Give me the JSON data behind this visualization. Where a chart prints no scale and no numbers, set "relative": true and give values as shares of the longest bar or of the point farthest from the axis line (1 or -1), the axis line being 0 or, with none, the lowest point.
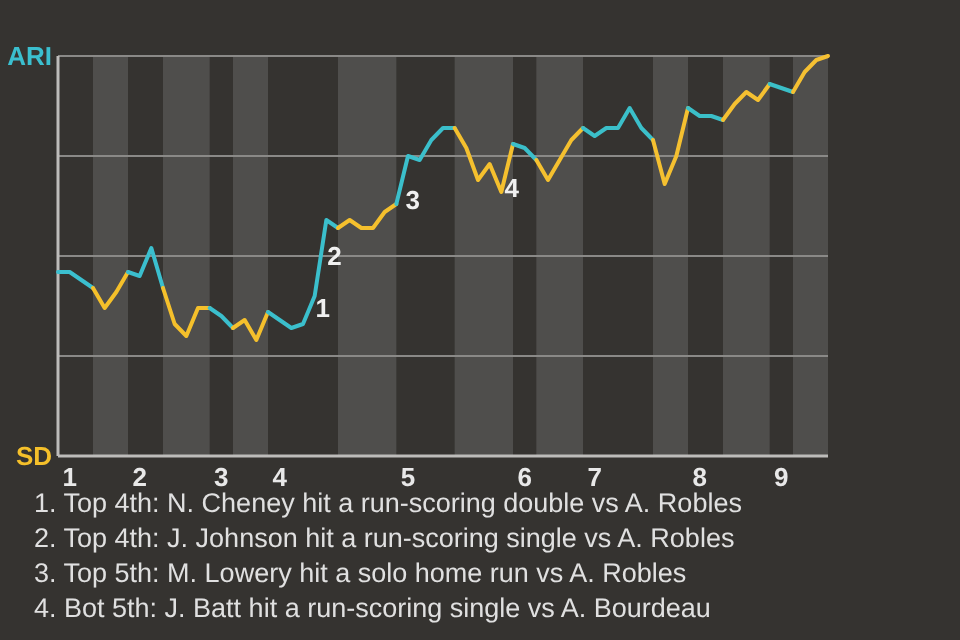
{
  "chart_data": {
    "type": "line",
    "relative": true,
    "categories": [
      null,
      "1",
      null,
      null,
      null,
      null,
      null,
      "2",
      null,
      null,
      null,
      null,
      null,
      null,
      "3",
      null,
      null,
      null,
      null,
      "4",
      null,
      null,
      null,
      null,
      null,
      null,
      null,
      null,
      null,
      null,
      "5",
      null,
      null,
      null,
      null,
      null,
      null,
      null,
      null,
      null,
      "6",
      null,
      null,
      null,
      null,
      null,
      "7",
      null,
      null,
      null,
      null,
      null,
      null,
      null,
      null,
      "8",
      null,
      null,
      null,
      null,
      null,
      null,
      "9",
      null,
      null,
      null,
      null
    ],
    "grid": "y",
    "marker": "none",
    "line_style": "solid",
    "series": [
      {
        "name": "ARI",
        "color": "#3bbfcf",
        "values": [
          0.46,
          0.46,
          0.44,
          0.42,
          null,
          null,
          null,
          null,
          null,
          null,
          null,
          null,
          null,
          null,
          null,
          null,
          null,
          null,
          null,
          null,
          null,
          null,
          null,
          null,
          null,
          null,
          null,
          null,
          null,
          null,
          null,
          null,
          null,
          null,
          null,
          null,
          null,
          null,
          null,
          null,
          null,
          null,
          null,
          null,
          null,
          null,
          null,
          null,
          null,
          null,
          null,
          null,
          null,
          null,
          null,
          null,
          null,
          null,
          null,
          null,
          null,
          null,
          null,
          null,
          null,
          null,
          null
        ]
      },
      {
        "name": "SD",
        "color": "#f5c02a",
        "values": [
          null,
          null,
          null,
          0.42,
          0.37,
          0.41,
          0.46,
          null,
          null,
          null,
          null,
          null,
          null,
          null,
          null,
          null,
          null,
          null,
          null,
          null,
          null,
          null,
          null,
          null,
          null,
          null,
          null,
          null,
          null,
          null,
          null,
          null,
          null,
          null,
          null,
          null,
          null,
          null,
          null,
          null,
          null,
          null,
          null,
          null,
          null,
          null,
          null,
          null,
          null,
          null,
          null,
          null,
          null,
          null,
          null,
          null,
          null,
          null,
          null,
          null,
          null,
          null,
          null,
          null,
          null,
          null,
          null
        ]
      },
      {
        "color": "#3bbfce",
        "values": [
          null,
          null,
          null,
          null,
          null,
          null,
          0.46,
          0.45,
          0.52,
          0.42,
          null,
          null,
          null,
          null,
          null,
          null,
          null,
          null,
          null,
          null,
          null,
          null,
          null,
          null,
          null,
          null,
          null,
          null,
          null,
          null,
          null,
          null,
          null,
          null,
          null,
          null,
          null,
          null,
          null,
          null,
          null,
          null,
          null,
          null,
          null,
          null,
          null,
          null,
          null,
          null,
          null,
          null,
          null,
          null,
          null,
          null,
          null,
          null,
          null,
          null,
          null,
          null,
          null,
          null,
          null,
          null,
          null
        ]
      },
      {
        "color": "#f5c02b",
        "values": [
          null,
          null,
          null,
          null,
          null,
          null,
          null,
          null,
          null,
          0.42,
          0.33,
          0.3,
          0.37,
          0.37,
          null,
          null,
          null,
          null,
          null,
          null,
          null,
          null,
          null,
          null,
          null,
          null,
          null,
          null,
          null,
          null,
          null,
          null,
          null,
          null,
          null,
          null,
          null,
          null,
          null,
          null,
          null,
          null,
          null,
          null,
          null,
          null,
          null,
          null,
          null,
          null,
          null,
          null,
          null,
          null,
          null,
          null,
          null,
          null,
          null,
          null,
          null,
          null,
          null,
          null,
          null,
          null,
          null
        ]
      },
      {
        "color": "#3bbfcd",
        "values": [
          null,
          null,
          null,
          null,
          null,
          null,
          null,
          null,
          null,
          null,
          null,
          null,
          null,
          0.37,
          0.35,
          0.32,
          null,
          null,
          null,
          null,
          null,
          null,
          null,
          null,
          null,
          null,
          null,
          null,
          null,
          null,
          null,
          null,
          null,
          null,
          null,
          null,
          null,
          null,
          null,
          null,
          null,
          null,
          null,
          null,
          null,
          null,
          null,
          null,
          null,
          null,
          null,
          null,
          null,
          null,
          null,
          null,
          null,
          null,
          null,
          null,
          null,
          null,
          null,
          null,
          null,
          null,
          null
        ]
      },
      {
        "color": "#f5c02c",
        "values": [
          null,
          null,
          null,
          null,
          null,
          null,
          null,
          null,
          null,
          null,
          null,
          null,
          null,
          null,
          null,
          0.32,
          0.34,
          0.29,
          0.36,
          null,
          null,
          null,
          null,
          null,
          null,
          null,
          null,
          null,
          null,
          null,
          null,
          null,
          null,
          null,
          null,
          null,
          null,
          null,
          null,
          null,
          null,
          null,
          null,
          null,
          null,
          null,
          null,
          null,
          null,
          null,
          null,
          null,
          null,
          null,
          null,
          null,
          null,
          null,
          null,
          null,
          null,
          null,
          null,
          null,
          null,
          null,
          null
        ]
      },
      {
        "color": "#3bbfcc",
        "values": [
          null,
          null,
          null,
          null,
          null,
          null,
          null,
          null,
          null,
          null,
          null,
          null,
          null,
          null,
          null,
          null,
          null,
          null,
          0.36,
          0.34,
          0.32,
          0.33,
          0.4,
          0.59,
          0.57,
          null,
          null,
          null,
          null,
          null,
          null,
          null,
          null,
          null,
          null,
          null,
          null,
          null,
          null,
          null,
          null,
          null,
          null,
          null,
          null,
          null,
          null,
          null,
          null,
          null,
          null,
          null,
          null,
          null,
          null,
          null,
          null,
          null,
          null,
          null,
          null,
          null,
          null,
          null,
          null,
          null,
          null
        ]
      },
      {
        "color": "#f5c02d",
        "values": [
          null,
          null,
          null,
          null,
          null,
          null,
          null,
          null,
          null,
          null,
          null,
          null,
          null,
          null,
          null,
          null,
          null,
          null,
          null,
          null,
          null,
          null,
          null,
          null,
          0.57,
          0.59,
          0.57,
          0.57,
          0.61,
          0.63,
          null,
          null,
          null,
          null,
          null,
          null,
          null,
          null,
          null,
          null,
          null,
          null,
          null,
          null,
          null,
          null,
          null,
          null,
          null,
          null,
          null,
          null,
          null,
          null,
          null,
          null,
          null,
          null,
          null,
          null,
          null,
          null,
          null,
          null,
          null,
          null,
          null
        ]
      },
      {
        "color": "#3bbfcb",
        "values": [
          null,
          null,
          null,
          null,
          null,
          null,
          null,
          null,
          null,
          null,
          null,
          null,
          null,
          null,
          null,
          null,
          null,
          null,
          null,
          null,
          null,
          null,
          null,
          null,
          null,
          null,
          null,
          null,
          null,
          0.63,
          0.75,
          0.74,
          0.79,
          0.82,
          0.82,
          null,
          null,
          null,
          null,
          null,
          null,
          null,
          null,
          null,
          null,
          null,
          null,
          null,
          null,
          null,
          null,
          null,
          null,
          null,
          null,
          null,
          null,
          null,
          null,
          null,
          null,
          null,
          null,
          null,
          null,
          null,
          null
        ]
      },
      {
        "color": "#f5c02e",
        "values": [
          null,
          null,
          null,
          null,
          null,
          null,
          null,
          null,
          null,
          null,
          null,
          null,
          null,
          null,
          null,
          null,
          null,
          null,
          null,
          null,
          null,
          null,
          null,
          null,
          null,
          null,
          null,
          null,
          null,
          null,
          null,
          null,
          null,
          null,
          0.82,
          0.77,
          0.69,
          0.73,
          0.66,
          0.78,
          null,
          null,
          null,
          null,
          null,
          null,
          null,
          null,
          null,
          null,
          null,
          null,
          null,
          null,
          null,
          null,
          null,
          null,
          null,
          null,
          null,
          null,
          null,
          null,
          null,
          null,
          null
        ]
      },
      {
        "color": "#3bbfca",
        "values": [
          null,
          null,
          null,
          null,
          null,
          null,
          null,
          null,
          null,
          null,
          null,
          null,
          null,
          null,
          null,
          null,
          null,
          null,
          null,
          null,
          null,
          null,
          null,
          null,
          null,
          null,
          null,
          null,
          null,
          null,
          null,
          null,
          null,
          null,
          null,
          null,
          null,
          null,
          null,
          0.78,
          0.77,
          0.74,
          null,
          null,
          null,
          null,
          null,
          null,
          null,
          null,
          null,
          null,
          null,
          null,
          null,
          null,
          null,
          null,
          null,
          null,
          null,
          null,
          null,
          null,
          null,
          null,
          null
        ]
      },
      {
        "color": "#f5c02f",
        "values": [
          null,
          null,
          null,
          null,
          null,
          null,
          null,
          null,
          null,
          null,
          null,
          null,
          null,
          null,
          null,
          null,
          null,
          null,
          null,
          null,
          null,
          null,
          null,
          null,
          null,
          null,
          null,
          null,
          null,
          null,
          null,
          null,
          null,
          null,
          null,
          null,
          null,
          null,
          null,
          null,
          null,
          0.74,
          0.69,
          0.74,
          0.79,
          0.82,
          null,
          null,
          null,
          null,
          null,
          null,
          null,
          null,
          null,
          null,
          null,
          null,
          null,
          null,
          null,
          null,
          null,
          null,
          null,
          null,
          null
        ]
      },
      {
        "color": "#3bbfc9",
        "values": [
          null,
          null,
          null,
          null,
          null,
          null,
          null,
          null,
          null,
          null,
          null,
          null,
          null,
          null,
          null,
          null,
          null,
          null,
          null,
          null,
          null,
          null,
          null,
          null,
          null,
          null,
          null,
          null,
          null,
          null,
          null,
          null,
          null,
          null,
          null,
          null,
          null,
          null,
          null,
          null,
          null,
          null,
          null,
          null,
          null,
          0.82,
          0.8,
          0.82,
          0.82,
          0.87,
          0.82,
          0.79,
          null,
          null,
          null,
          null,
          null,
          null,
          null,
          null,
          null,
          null,
          null,
          null,
          null,
          null,
          null
        ]
      },
      {
        "color": "#f5c030",
        "values": [
          null,
          null,
          null,
          null,
          null,
          null,
          null,
          null,
          null,
          null,
          null,
          null,
          null,
          null,
          null,
          null,
          null,
          null,
          null,
          null,
          null,
          null,
          null,
          null,
          null,
          null,
          null,
          null,
          null,
          null,
          null,
          null,
          null,
          null,
          null,
          null,
          null,
          null,
          null,
          null,
          null,
          null,
          null,
          null,
          null,
          null,
          null,
          null,
          null,
          null,
          null,
          0.79,
          0.68,
          0.75,
          0.87,
          null,
          null,
          null,
          null,
          null,
          null,
          null,
          null,
          null,
          null,
          null,
          null
        ]
      },
      {
        "color": "#3bbfc8",
        "values": [
          null,
          null,
          null,
          null,
          null,
          null,
          null,
          null,
          null,
          null,
          null,
          null,
          null,
          null,
          null,
          null,
          null,
          null,
          null,
          null,
          null,
          null,
          null,
          null,
          null,
          null,
          null,
          null,
          null,
          null,
          null,
          null,
          null,
          null,
          null,
          null,
          null,
          null,
          null,
          null,
          null,
          null,
          null,
          null,
          null,
          null,
          null,
          null,
          null,
          null,
          null,
          null,
          null,
          null,
          0.87,
          0.85,
          0.85,
          0.84,
          null,
          null,
          null,
          null,
          null,
          null,
          null,
          null,
          null
        ]
      },
      {
        "color": "#f5c031",
        "values": [
          null,
          null,
          null,
          null,
          null,
          null,
          null,
          null,
          null,
          null,
          null,
          null,
          null,
          null,
          null,
          null,
          null,
          null,
          null,
          null,
          null,
          null,
          null,
          null,
          null,
          null,
          null,
          null,
          null,
          null,
          null,
          null,
          null,
          null,
          null,
          null,
          null,
          null,
          null,
          null,
          null,
          null,
          null,
          null,
          null,
          null,
          null,
          null,
          null,
          null,
          null,
          null,
          null,
          null,
          null,
          null,
          null,
          0.84,
          0.88,
          0.91,
          0.89,
          0.93,
          null,
          null,
          null,
          null,
          null
        ]
      },
      {
        "color": "#3bbfc7",
        "values": [
          null,
          null,
          null,
          null,
          null,
          null,
          null,
          null,
          null,
          null,
          null,
          null,
          null,
          null,
          null,
          null,
          null,
          null,
          null,
          null,
          null,
          null,
          null,
          null,
          null,
          null,
          null,
          null,
          null,
          null,
          null,
          null,
          null,
          null,
          null,
          null,
          null,
          null,
          null,
          null,
          null,
          null,
          null,
          null,
          null,
          null,
          null,
          null,
          null,
          null,
          null,
          null,
          null,
          null,
          null,
          null,
          null,
          null,
          null,
          null,
          null,
          0.93,
          0.92,
          0.91,
          null,
          null,
          null
        ]
      },
      {
        "color": "#f5c032",
        "values": [
          null,
          null,
          null,
          null,
          null,
          null,
          null,
          null,
          null,
          null,
          null,
          null,
          null,
          null,
          null,
          null,
          null,
          null,
          null,
          null,
          null,
          null,
          null,
          null,
          null,
          null,
          null,
          null,
          null,
          null,
          null,
          null,
          null,
          null,
          null,
          null,
          null,
          null,
          null,
          null,
          null,
          null,
          null,
          null,
          null,
          null,
          null,
          null,
          null,
          null,
          null,
          null,
          null,
          null,
          null,
          null,
          null,
          null,
          null,
          null,
          null,
          null,
          null,
          0.91,
          0.96,
          0.99,
          1.0
        ]
      }
    ],
    "annotations": [
      "1",
      "2",
      "3",
      "4",
      "1. Top 4th: N. Cheney hit a run-scoring double vs A. Robles",
      "2. Top 4th: J. Johnson hit a run-scoring single vs A. Robles",
      "3. Top 5th: M. Lowery hit a solo home run vs A. Robles",
      "4. Bot 5th: J. Batt hit a run-scoring single vs A. Bourdeau"
    ]
  }
}
